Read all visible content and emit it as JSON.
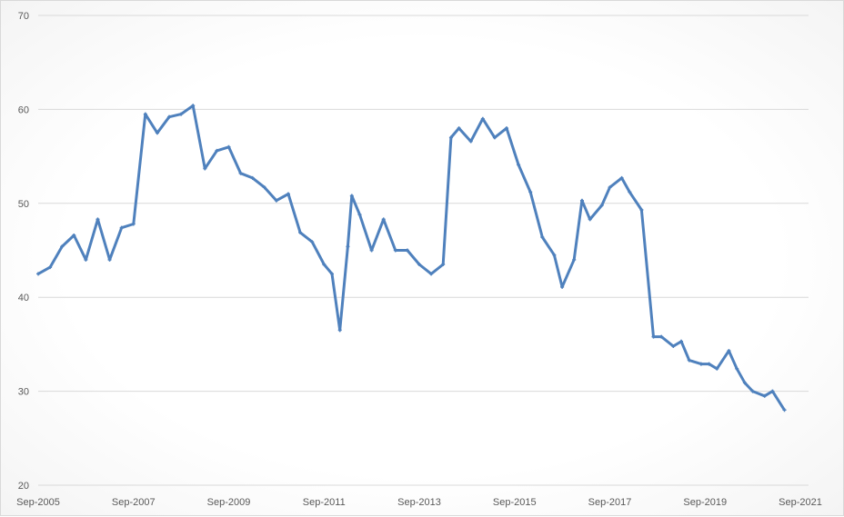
{
  "chart_data": {
    "type": "line",
    "title": "",
    "xlabel": "",
    "ylabel": "",
    "ylim": [
      20,
      70
    ],
    "yticks": [
      "20",
      "30",
      "40",
      "50",
      "60",
      "70"
    ],
    "xticks": [
      "Sep-2005",
      "Sep-2007",
      "Sep-2009",
      "Sep-2011",
      "Sep-2013",
      "Sep-2015",
      "Sep-2017",
      "Sep-2019",
      "Sep-2021"
    ],
    "xlim": [
      "2005-09",
      "2021-09"
    ],
    "grid": true,
    "legend": "none",
    "color": "#4f81bd",
    "markers": true,
    "points": [
      [
        "2005-09",
        42.5
      ],
      [
        "2005-12",
        43.2
      ],
      [
        "2006-03",
        45.4
      ],
      [
        "2006-06",
        46.6
      ],
      [
        "2006-09",
        44.0
      ],
      [
        "2006-12",
        48.3
      ],
      [
        "2007-03",
        44.0
      ],
      [
        "2007-06",
        47.4
      ],
      [
        "2007-09",
        47.8
      ],
      [
        "2007-12",
        59.5
      ],
      [
        "2008-03",
        57.5
      ],
      [
        "2008-06",
        59.2
      ],
      [
        "2008-09",
        59.5
      ],
      [
        "2008-12",
        60.4
      ],
      [
        "2009-03",
        53.7
      ],
      [
        "2009-06",
        55.6
      ],
      [
        "2009-09",
        56.0
      ],
      [
        "2009-12",
        53.2
      ],
      [
        "2010-03",
        52.7
      ],
      [
        "2010-06",
        51.7
      ],
      [
        "2010-09",
        50.3
      ],
      [
        "2010-12",
        51.0
      ],
      [
        "2011-03",
        46.9
      ],
      [
        "2011-06",
        45.9
      ],
      [
        "2011-09",
        43.5
      ],
      [
        "2011-11",
        42.5
      ],
      [
        "2012-01",
        36.5
      ],
      [
        "2012-03",
        45.4
      ],
      [
        "2012-04",
        50.8
      ],
      [
        "2012-06",
        48.8
      ],
      [
        "2012-09",
        45.0
      ],
      [
        "2012-12",
        48.3
      ],
      [
        "2013-03",
        45.0
      ],
      [
        "2013-06",
        45.0
      ],
      [
        "2013-09",
        43.5
      ],
      [
        "2013-12",
        42.5
      ],
      [
        "2014-03",
        43.5
      ],
      [
        "2014-05",
        57.0
      ],
      [
        "2014-07",
        58.0
      ],
      [
        "2014-10",
        56.6
      ],
      [
        "2015-01",
        59.0
      ],
      [
        "2015-04",
        57.0
      ],
      [
        "2015-07",
        58.0
      ],
      [
        "2015-10",
        54.1
      ],
      [
        "2016-01",
        51.2
      ],
      [
        "2016-04",
        46.4
      ],
      [
        "2016-07",
        44.5
      ],
      [
        "2016-09",
        41.1
      ],
      [
        "2016-12",
        44.0
      ],
      [
        "2017-02",
        50.3
      ],
      [
        "2017-04",
        48.3
      ],
      [
        "2017-07",
        49.8
      ],
      [
        "2017-09",
        51.7
      ],
      [
        "2017-12",
        52.7
      ],
      [
        "2018-02",
        51.2
      ],
      [
        "2018-05",
        49.3
      ],
      [
        "2018-08",
        35.8
      ],
      [
        "2018-10",
        35.8
      ],
      [
        "2019-01",
        34.8
      ],
      [
        "2019-03",
        35.3
      ],
      [
        "2019-05",
        33.3
      ],
      [
        "2019-08",
        32.9
      ],
      [
        "2019-10",
        32.9
      ],
      [
        "2019-12",
        32.4
      ],
      [
        "2020-03",
        34.3
      ],
      [
        "2020-05",
        32.4
      ],
      [
        "2020-07",
        30.9
      ],
      [
        "2020-09",
        30.0
      ],
      [
        "2020-12",
        29.5
      ],
      [
        "2021-02",
        30.0
      ],
      [
        "2021-05",
        28.0
      ]
    ]
  }
}
